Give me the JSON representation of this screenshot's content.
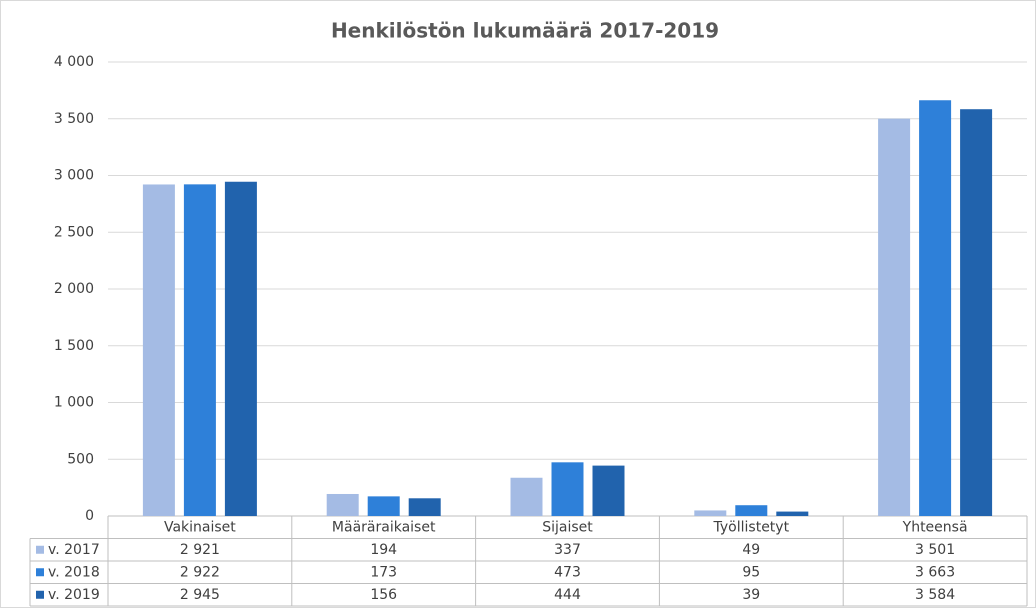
{
  "chart_data": {
    "type": "bar",
    "title": "Henkilöstön lukumäärä 2017-2019",
    "categories": [
      "Vakinaiset",
      "Määräraikaiset",
      "Sijaiset",
      "Työllistetyt",
      "Yhteensä"
    ],
    "series": [
      {
        "name": "v. 2017",
        "color": "#a4bbe4",
        "values": [
          2921,
          194,
          337,
          49,
          3501
        ],
        "value_labels": [
          "2 921",
          "194",
          "337",
          "49",
          "3 501"
        ]
      },
      {
        "name": "v. 2018",
        "color": "#2e80d9",
        "values": [
          2922,
          173,
          473,
          95,
          3663
        ],
        "value_labels": [
          "2 922",
          "173",
          "473",
          "95",
          "3 663"
        ]
      },
      {
        "name": "v. 2019",
        "color": "#2163ad",
        "values": [
          2945,
          156,
          444,
          39,
          3584
        ],
        "value_labels": [
          "2 945",
          "156",
          "444",
          "39",
          "3 584"
        ]
      }
    ],
    "ylim": [
      0,
      4000
    ],
    "yticks": [
      0,
      500,
      {
        "value": 1000,
        "label": "1 000"
      },
      {
        "value": 1500,
        "label": "1 500"
      },
      {
        "value": 2000,
        "label": "2 000"
      },
      {
        "value": 2500,
        "label": "2 500"
      },
      {
        "value": 3000,
        "label": "3 000"
      },
      {
        "value": 3500,
        "label": "3 500"
      },
      {
        "value": 4000,
        "label": "4 000"
      }
    ],
    "grid": true
  }
}
